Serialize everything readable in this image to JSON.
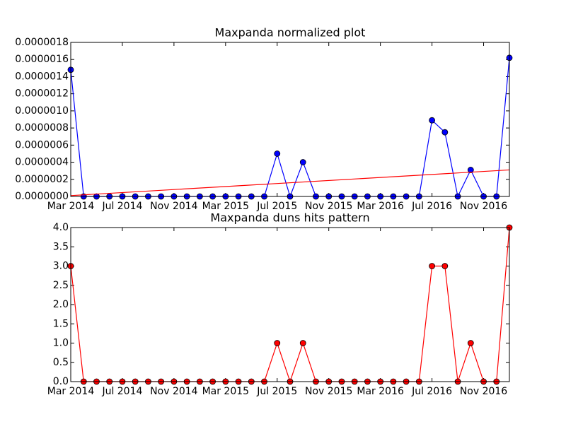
{
  "chart_data": [
    {
      "type": "line",
      "title": "Maxpanda normalized plot",
      "x": [
        "2014-03",
        "2014-04",
        "2014-05",
        "2014-06",
        "2014-07",
        "2014-08",
        "2014-09",
        "2014-10",
        "2014-11",
        "2014-12",
        "2015-01",
        "2015-02",
        "2015-03",
        "2015-04",
        "2015-05",
        "2015-06",
        "2015-07",
        "2015-08",
        "2015-09",
        "2015-10",
        "2015-11",
        "2015-12",
        "2016-01",
        "2016-02",
        "2016-03",
        "2016-04",
        "2016-05",
        "2016-06",
        "2016-07",
        "2016-08",
        "2016-09",
        "2016-10",
        "2016-11",
        "2016-12",
        "2017-01"
      ],
      "series": [
        {
          "color": "#0000ff",
          "marker": true,
          "values": [
            1.48e-06,
            0,
            0,
            0,
            0,
            0,
            0,
            0,
            0,
            0,
            0,
            0,
            0,
            0,
            0,
            0,
            5e-07,
            0,
            4e-07,
            0,
            0,
            0,
            0,
            0,
            0,
            0,
            0,
            0,
            8.9e-07,
            7.5e-07,
            0,
            3.1e-07,
            0,
            0,
            1.62e-06
          ]
        },
        {
          "color": "#ff0000",
          "marker": false,
          "x": [
            "2014-03",
            "2017-01"
          ],
          "values": [
            1e-08,
            3.1e-07
          ]
        }
      ],
      "xlim": [
        "2014-03",
        "2017-01"
      ],
      "xticks": [
        {
          "value": "2014-03",
          "label": "Mar 2014"
        },
        {
          "value": "2014-07",
          "label": "Jul 2014"
        },
        {
          "value": "2014-11",
          "label": "Nov 2014"
        },
        {
          "value": "2015-03",
          "label": "Mar 2015"
        },
        {
          "value": "2015-07",
          "label": "Jul 2015"
        },
        {
          "value": "2015-11",
          "label": "Nov 2015"
        },
        {
          "value": "2016-03",
          "label": "Mar 2016"
        },
        {
          "value": "2016-07",
          "label": "Jul 2016"
        },
        {
          "value": "2016-11",
          "label": "Nov 2016"
        }
      ],
      "ylim": [
        0,
        1.8e-06
      ],
      "yticks": [
        {
          "value": 0,
          "label": "0.0000000"
        },
        {
          "value": 2e-07,
          "label": "0.0000002"
        },
        {
          "value": 4e-07,
          "label": "0.0000004"
        },
        {
          "value": 6e-07,
          "label": "0.0000006"
        },
        {
          "value": 8e-07,
          "label": "0.0000008"
        },
        {
          "value": 1e-06,
          "label": "0.0000010"
        },
        {
          "value": 1.2e-06,
          "label": "0.0000012"
        },
        {
          "value": 1.4e-06,
          "label": "0.0000014"
        },
        {
          "value": 1.6e-06,
          "label": "0.0000016"
        },
        {
          "value": 1.8e-06,
          "label": "0.0000018"
        }
      ]
    },
    {
      "type": "line",
      "title": "Maxpanda duns hits pattern",
      "x": [
        "2014-03",
        "2014-04",
        "2014-05",
        "2014-06",
        "2014-07",
        "2014-08",
        "2014-09",
        "2014-10",
        "2014-11",
        "2014-12",
        "2015-01",
        "2015-02",
        "2015-03",
        "2015-04",
        "2015-05",
        "2015-06",
        "2015-07",
        "2015-08",
        "2015-09",
        "2015-10",
        "2015-11",
        "2015-12",
        "2016-01",
        "2016-02",
        "2016-03",
        "2016-04",
        "2016-05",
        "2016-06",
        "2016-07",
        "2016-08",
        "2016-09",
        "2016-10",
        "2016-11",
        "2016-12",
        "2017-01"
      ],
      "series": [
        {
          "color": "#ff0000",
          "marker": true,
          "values": [
            3,
            0,
            0,
            0,
            0,
            0,
            0,
            0,
            0,
            0,
            0,
            0,
            0,
            0,
            0,
            0,
            1,
            0,
            1,
            0,
            0,
            0,
            0,
            0,
            0,
            0,
            0,
            0,
            3,
            3,
            0,
            1,
            0,
            0,
            4
          ]
        }
      ],
      "xlim": [
        "2014-03",
        "2017-01"
      ],
      "xticks": [
        {
          "value": "2014-03",
          "label": "Mar 2014"
        },
        {
          "value": "2014-07",
          "label": "Jul 2014"
        },
        {
          "value": "2014-11",
          "label": "Nov 2014"
        },
        {
          "value": "2015-03",
          "label": "Mar 2015"
        },
        {
          "value": "2015-07",
          "label": "Jul 2015"
        },
        {
          "value": "2015-11",
          "label": "Nov 2015"
        },
        {
          "value": "2016-03",
          "label": "Mar 2016"
        },
        {
          "value": "2016-07",
          "label": "Jul 2016"
        },
        {
          "value": "2016-11",
          "label": "Nov 2016"
        }
      ],
      "ylim": [
        0,
        4
      ],
      "yticks": [
        {
          "value": 0,
          "label": "0.0"
        },
        0.5,
        {
          "value": 1,
          "label": "1.0"
        },
        1.5,
        {
          "value": 2,
          "label": "2.0"
        },
        2.5,
        {
          "value": 3,
          "label": "3.0"
        },
        3.5,
        {
          "value": 4,
          "label": "4.0"
        }
      ]
    }
  ]
}
